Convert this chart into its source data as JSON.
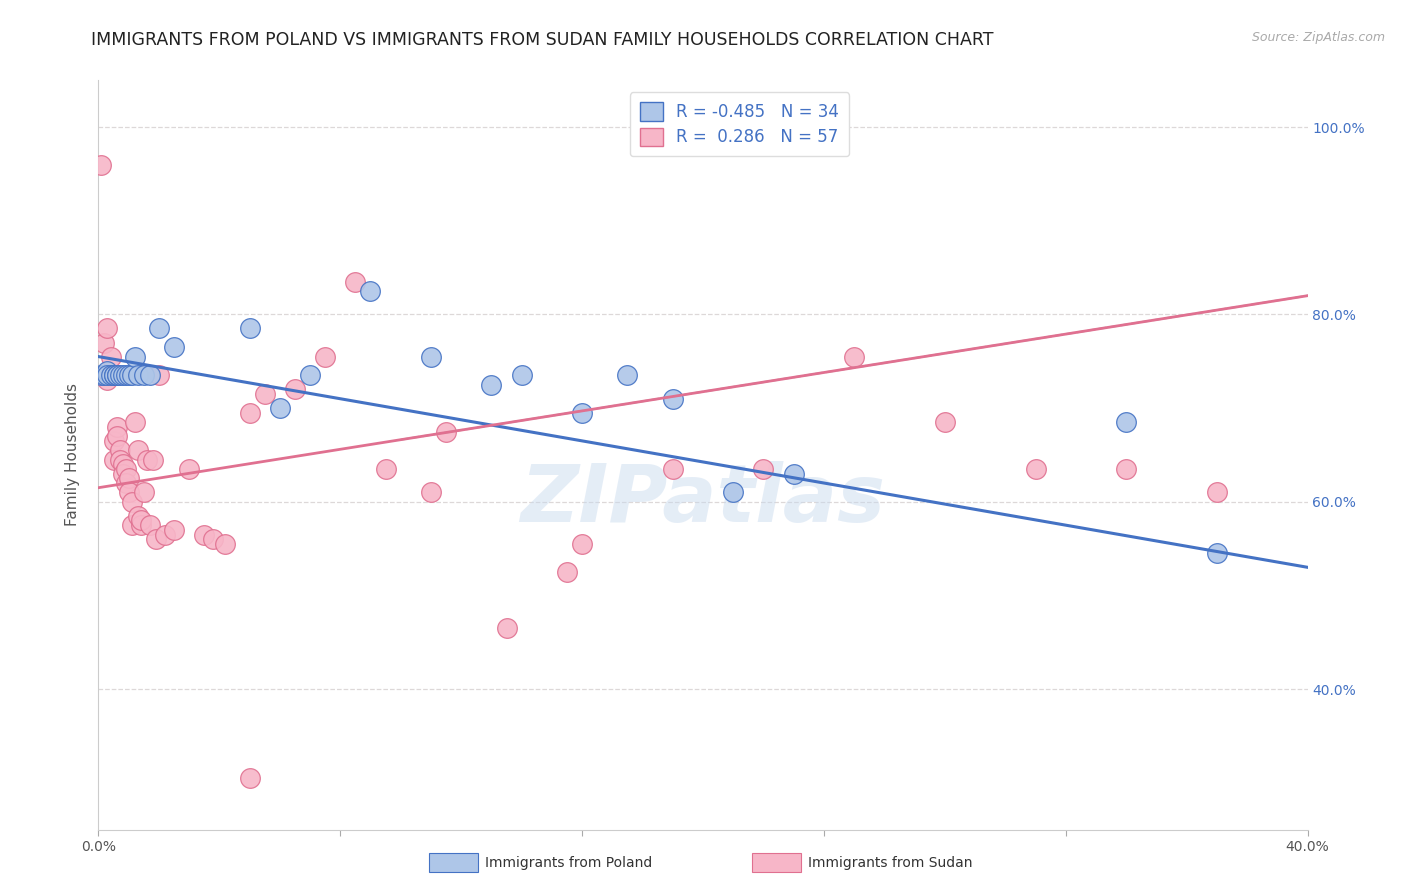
{
  "title": "IMMIGRANTS FROM POLAND VS IMMIGRANTS FROM SUDAN FAMILY HOUSEHOLDS CORRELATION CHART",
  "source": "Source: ZipAtlas.com",
  "ylabel": "Family Households",
  "xlim": [
    0.0,
    0.4
  ],
  "ylim": [
    0.25,
    1.05
  ],
  "yticks": [
    0.4,
    0.6,
    0.8,
    1.0
  ],
  "ytick_labels": [
    "40.0%",
    "60.0%",
    "80.0%",
    "100.0%"
  ],
  "xticks": [
    0.0,
    0.4
  ],
  "xtick_labels": [
    "0.0%",
    "40.0%"
  ],
  "poland_R": -0.485,
  "poland_N": 34,
  "sudan_R": 0.286,
  "sudan_N": 57,
  "poland_color": "#aec6e8",
  "sudan_color": "#f7b6c8",
  "poland_line_color": "#4472c4",
  "sudan_line_color": "#e07090",
  "poland_scatter_x": [
    0.001,
    0.002,
    0.003,
    0.003,
    0.004,
    0.005,
    0.005,
    0.006,
    0.006,
    0.007,
    0.008,
    0.009,
    0.01,
    0.011,
    0.012,
    0.013,
    0.015,
    0.017,
    0.02,
    0.025,
    0.05,
    0.06,
    0.07,
    0.09,
    0.11,
    0.13,
    0.14,
    0.16,
    0.175,
    0.19,
    0.21,
    0.23,
    0.34,
    0.37
  ],
  "poland_scatter_y": [
    0.735,
    0.735,
    0.74,
    0.735,
    0.735,
    0.735,
    0.735,
    0.735,
    0.735,
    0.735,
    0.735,
    0.735,
    0.735,
    0.735,
    0.755,
    0.735,
    0.735,
    0.735,
    0.785,
    0.765,
    0.785,
    0.7,
    0.735,
    0.825,
    0.755,
    0.725,
    0.735,
    0.695,
    0.735,
    0.71,
    0.61,
    0.63,
    0.685,
    0.545
  ],
  "sudan_scatter_x": [
    0.001,
    0.002,
    0.002,
    0.003,
    0.003,
    0.004,
    0.004,
    0.005,
    0.005,
    0.006,
    0.006,
    0.007,
    0.007,
    0.008,
    0.008,
    0.009,
    0.009,
    0.01,
    0.01,
    0.011,
    0.011,
    0.012,
    0.013,
    0.013,
    0.014,
    0.014,
    0.015,
    0.016,
    0.017,
    0.018,
    0.019,
    0.02,
    0.022,
    0.025,
    0.03,
    0.035,
    0.038,
    0.042,
    0.05,
    0.055,
    0.065,
    0.075,
    0.085,
    0.095,
    0.11,
    0.115,
    0.135,
    0.16,
    0.19,
    0.22,
    0.25,
    0.28,
    0.31,
    0.34,
    0.37,
    0.05,
    0.155
  ],
  "sudan_scatter_y": [
    0.96,
    0.735,
    0.77,
    0.785,
    0.73,
    0.755,
    0.735,
    0.665,
    0.645,
    0.68,
    0.67,
    0.655,
    0.645,
    0.64,
    0.63,
    0.635,
    0.62,
    0.625,
    0.61,
    0.6,
    0.575,
    0.685,
    0.585,
    0.655,
    0.575,
    0.58,
    0.61,
    0.645,
    0.575,
    0.645,
    0.56,
    0.735,
    0.565,
    0.57,
    0.635,
    0.565,
    0.56,
    0.555,
    0.695,
    0.715,
    0.72,
    0.755,
    0.835,
    0.635,
    0.61,
    0.675,
    0.465,
    0.555,
    0.635,
    0.635,
    0.755,
    0.685,
    0.635,
    0.635,
    0.61,
    0.305,
    0.525
  ],
  "background_color": "#ffffff",
  "grid_color": "#ddd8d8",
  "title_fontsize": 12.5,
  "axis_label_fontsize": 11,
  "tick_fontsize": 10,
  "legend_fontsize": 12,
  "watermark_text": "ZIPatlas",
  "watermark_color": "#c5d8ed",
  "watermark_alpha": 0.45
}
